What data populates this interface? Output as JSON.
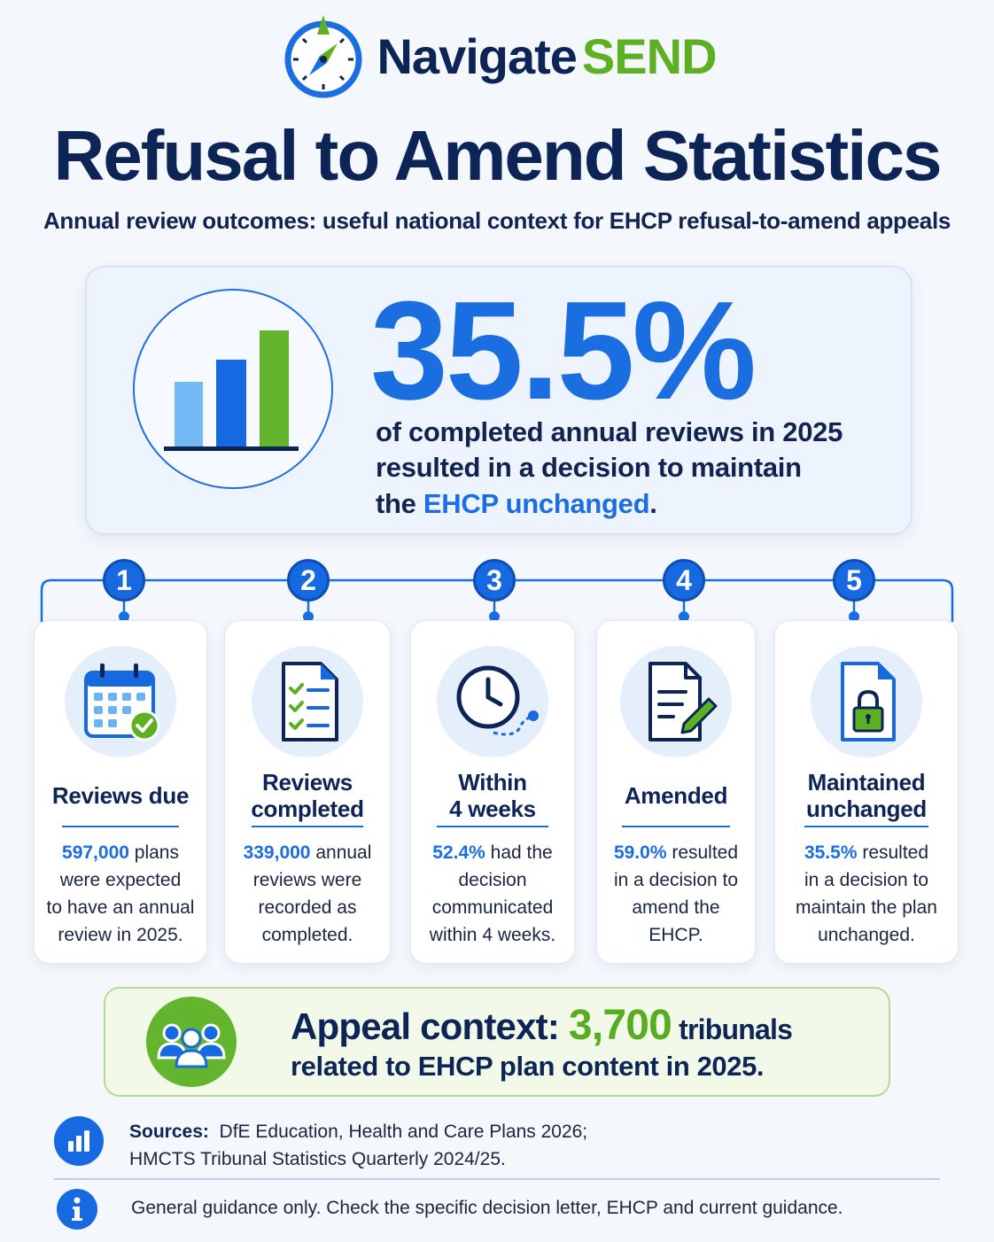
{
  "brand": {
    "name_part1": "Navigate",
    "name_part2": "SEND",
    "logo_icon": "compass-icon",
    "colors": {
      "navy": "#0d2456",
      "blue": "#1a6ee0",
      "green": "#5cb021"
    }
  },
  "title": "Refusal to Amend Statistics",
  "subtitle": "Annual review outcomes: useful national context for EHCP refusal-to-amend appeals",
  "hero": {
    "icon": "bar-chart-icon",
    "percent": "35.5%",
    "line1": "of completed annual reviews in 2025",
    "line2": "resulted in a decision to maintain",
    "line3_prefix": "the ",
    "line3_highlight": "EHCP unchanged",
    "line3_suffix": "."
  },
  "steps": [
    {
      "number": "1",
      "icon": "calendar-check-icon",
      "title_l1": "Reviews due",
      "title_l2": "",
      "stat": "597,000",
      "text": [
        " plans",
        "were expected",
        "to have an annual",
        "review in 2025."
      ]
    },
    {
      "number": "2",
      "icon": "checklist-icon",
      "title_l1": "Reviews",
      "title_l2": "completed",
      "stat": "339,000",
      "text": [
        " annual",
        "reviews were",
        "recorded as",
        "completed."
      ]
    },
    {
      "number": "3",
      "icon": "clock-icon",
      "title_l1": "Within",
      "title_l2": "4 weeks",
      "stat": "52.4%",
      "text": [
        " had the",
        "decision",
        "communicated",
        "within 4 weeks."
      ]
    },
    {
      "number": "4",
      "icon": "document-edit-icon",
      "title_l1": "Amended",
      "title_l2": "",
      "stat": "59.0%",
      "text": [
        " resulted",
        "in a decision to",
        "amend the",
        "EHCP."
      ]
    },
    {
      "number": "5",
      "icon": "document-lock-icon",
      "title_l1": "Maintained",
      "title_l2": "unchanged",
      "stat": "35.5%",
      "text": [
        " resulted",
        "in a decision to",
        "maintain the plan",
        "unchanged."
      ]
    }
  ],
  "appeal": {
    "icon": "people-group-icon",
    "label": "Appeal context: ",
    "number": "3,700",
    "suffix": " tribunals",
    "line2": "related to EHCP plan content in 2025."
  },
  "sources": {
    "icon": "chart-icon",
    "label": "Sources:",
    "line1": "  DfE Education, Health and Care Plans 2026;",
    "line2": "HMCTS Tribunal Statistics Quarterly 2024/25."
  },
  "guidance": {
    "icon": "info-icon",
    "text": "General guidance only. Check the specific decision letter, EHCP and current guidance."
  }
}
